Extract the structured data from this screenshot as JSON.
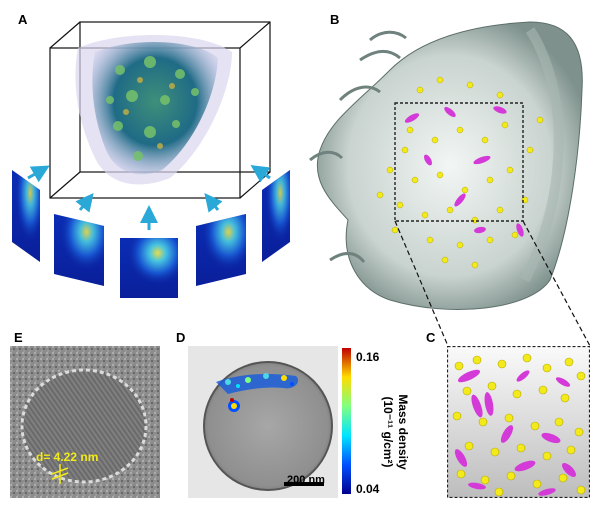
{
  "figure": {
    "panels": {
      "A": {
        "letter": "A"
      },
      "B": {
        "letter": "B"
      },
      "C": {
        "letter": "C"
      },
      "D": {
        "letter": "D",
        "colorbar": {
          "max_label": "0.16",
          "min_label": "0.04",
          "title_line1": "Mass density",
          "title_line2": "(10⁻¹¹ g/cm²)"
        },
        "scalebar_label": "200 nm"
      },
      "E": {
        "letter": "E",
        "measurement_label": "d= 4.22 nm"
      }
    },
    "colors": {
      "particle_yellow": "#f2ea1a",
      "organelle_magenta": "#d43ad8",
      "arrow_cyan": "#2aa8d8",
      "cell_shell": "#8fa4a0"
    }
  }
}
